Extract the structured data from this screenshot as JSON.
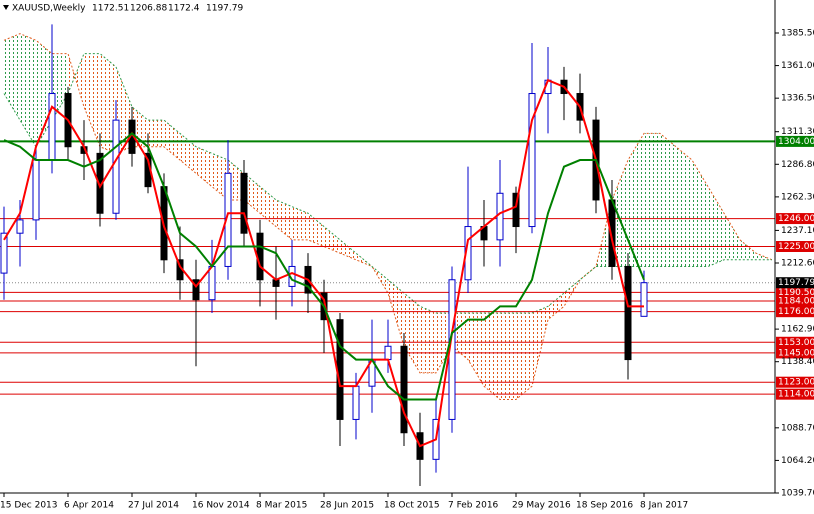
{
  "chart_data": {
    "type": "candlestick",
    "symbol": "XAUUSD,Weekly",
    "categories": [
      "15 Dec 2013",
      null,
      null,
      null,
      "6 Apr 2014",
      null,
      null,
      null,
      "27 Jul 2014",
      null,
      null,
      null,
      "16 Nov 2014",
      null,
      null,
      null,
      "8 Mar 2015",
      null,
      null,
      null,
      "28 Jun 2015",
      null,
      null,
      null,
      "18 Oct 2015",
      null,
      null,
      null,
      "7 Feb 2016",
      null,
      null,
      null,
      "29 May 2016",
      null,
      null,
      null,
      "18 Sep 2016",
      null,
      null,
      null,
      "8 Jan 2017",
      null,
      null,
      null,
      null,
      null,
      null,
      null,
      null
    ],
    "open": [
      1205,
      1235,
      1245,
      1290,
      1340,
      1300,
      1295,
      1250,
      1320,
      1295,
      1270,
      1215,
      1200,
      1185,
      1210,
      1280,
      1235,
      1200,
      1195,
      1210,
      1190,
      1170,
      1095,
      1120,
      1140,
      1150,
      1085,
      1065,
      1095,
      1200,
      1240,
      1230,
      1265,
      1240,
      1340,
      1350,
      1340,
      1320,
      1260,
      1210,
      1172.51,
      null,
      null,
      null,
      null,
      null,
      null,
      null,
      null
    ],
    "high": [
      1255,
      1260,
      1300,
      1392,
      1345,
      1320,
      1310,
      1335,
      1330,
      1310,
      1280,
      1240,
      1215,
      1230,
      1305,
      1290,
      1245,
      1225,
      1230,
      1220,
      1200,
      1175,
      1130,
      1170,
      1170,
      1160,
      1100,
      1110,
      1210,
      1285,
      1260,
      1290,
      1270,
      1378,
      1375,
      1360,
      1355,
      1330,
      1275,
      1220,
      1206.88,
      null,
      null,
      null,
      null,
      null,
      null,
      null,
      null
    ],
    "low": [
      1185,
      1210,
      1230,
      1280,
      1290,
      1275,
      1240,
      1245,
      1285,
      1265,
      1205,
      1185,
      1135,
      1175,
      1200,
      1225,
      1180,
      1170,
      1180,
      1175,
      1145,
      1075,
      1080,
      1100,
      1130,
      1075,
      1045,
      1055,
      1085,
      1190,
      1210,
      1210,
      1220,
      1235,
      1310,
      1320,
      1310,
      1250,
      1200,
      1125,
      1172.4,
      null,
      null,
      null,
      null,
      null,
      null,
      null,
      null
    ],
    "close": [
      1235,
      1245,
      1290,
      1340,
      1300,
      1295,
      1250,
      1320,
      1295,
      1270,
      1215,
      1200,
      1185,
      1210,
      1280,
      1235,
      1200,
      1195,
      1210,
      1190,
      1170,
      1095,
      1120,
      1140,
      1150,
      1085,
      1065,
      1095,
      1200,
      1240,
      1230,
      1265,
      1240,
      1340,
      1350,
      1340,
      1320,
      1260,
      1210,
      1140,
      1197.79,
      null,
      null,
      null,
      null,
      null,
      null,
      null,
      null
    ],
    "up_color": "#0000cc",
    "down_color": "#000000",
    "lines": [
      {
        "color": "#ff0000",
        "values": [
          1230,
          1250,
          1300,
          1330,
          1320,
          1300,
          1270,
          1290,
          1310,
          1290,
          1240,
          1210,
          1195,
          1210,
          1250,
          1250,
          1210,
          1200,
          1205,
          1200,
          1185,
          1120,
          1120,
          1140,
          1140,
          1100,
          1075,
          1080,
          1160,
          1230,
          1240,
          1250,
          1255,
          1320,
          1350,
          1345,
          1330,
          1290,
          1230,
          1180,
          1180,
          null,
          null,
          null,
          null,
          null,
          null,
          null,
          null
        ]
      },
      {
        "color": "#008000",
        "values": [
          1305,
          1300,
          1290,
          1290,
          1290,
          1285,
          1290,
          1300,
          1310,
          1300,
          1270,
          1235,
          1225,
          1210,
          1225,
          1225,
          1225,
          1220,
          1200,
          1195,
          1180,
          1150,
          1140,
          1140,
          1120,
          1110,
          1110,
          1110,
          1160,
          1170,
          1170,
          1180,
          1180,
          1200,
          1250,
          1285,
          1290,
          1290,
          1260,
          1230,
          1200,
          null,
          null,
          null,
          null,
          null,
          null,
          null,
          null
        ]
      }
    ],
    "cloud": {
      "span_a": [
        1380,
        1385,
        1380,
        1370,
        1370,
        1330,
        1300,
        1295,
        1300,
        1300,
        1300,
        1290,
        1280,
        1270,
        1260,
        1260,
        1250,
        1240,
        1230,
        1230,
        1225,
        1220,
        1215,
        1210,
        1190,
        1150,
        1130,
        1130,
        1150,
        1140,
        1120,
        1110,
        1110,
        1120,
        1170,
        1180,
        1200,
        1210,
        1260,
        1290,
        1310,
        1310,
        1300,
        1290,
        1270,
        1250,
        1230,
        1220,
        1215
      ],
      "span_b": [
        1340,
        1320,
        1300,
        1320,
        1340,
        1370,
        1370,
        1360,
        1330,
        1320,
        1320,
        1310,
        1300,
        1295,
        1290,
        1280,
        1270,
        1260,
        1255,
        1250,
        1240,
        1230,
        1220,
        1210,
        1200,
        1190,
        1180,
        1175,
        1175,
        1175,
        1175,
        1175,
        1175,
        1175,
        1180,
        1190,
        1200,
        1210,
        1210,
        1210,
        1210,
        1210,
        1210,
        1210,
        1210,
        1215,
        1215,
        1215,
        1215
      ],
      "bear_color": "#e05a1a",
      "bull_color": "#2e9a4a"
    },
    "levels": [
      {
        "value": 1304,
        "label": "1304.00",
        "color": "#008000"
      },
      {
        "value": 1246,
        "label": "1246.00",
        "color": "#dd0000"
      },
      {
        "value": 1225,
        "label": "1225.00",
        "color": "#dd0000"
      },
      {
        "value": 1190.5,
        "label": "1190.50",
        "color": "#dd0000"
      },
      {
        "value": 1184,
        "label": "1184.00",
        "color": "#dd0000"
      },
      {
        "value": 1176,
        "label": "1176.00",
        "color": "#dd0000"
      },
      {
        "value": 1153,
        "label": "1153.00",
        "color": "#dd0000"
      },
      {
        "value": 1145,
        "label": "1145.00",
        "color": "#dd0000"
      },
      {
        "value": 1123,
        "label": "1123.00",
        "color": "#dd0000"
      },
      {
        "value": 1114,
        "label": "1114.00",
        "color": "#dd0000"
      }
    ],
    "ylim": [
      1039.7,
      1410.3
    ],
    "yticks": [
      {
        "value": 1385.5,
        "label": "1385.50"
      },
      {
        "value": 1361,
        "label": "1361.00"
      },
      {
        "value": 1336.5,
        "label": "1336.50"
      },
      {
        "value": 1311.3,
        "label": "1311.30"
      },
      {
        "value": 1286.8,
        "label": "1286.80"
      },
      {
        "value": 1262.3,
        "label": "1262.30"
      },
      {
        "value": 1237.1,
        "label": "1237.10"
      },
      {
        "value": 1212.6,
        "label": "1212.60"
      },
      {
        "value": 1162.9,
        "label": "1162.90"
      },
      {
        "value": 1138.4,
        "label": "1138.40"
      },
      {
        "value": 1088.7,
        "label": "1088.70"
      },
      {
        "value": 1064.2,
        "label": "1064.20"
      },
      {
        "value": 1039.7,
        "label": "1039.70"
      }
    ]
  }
}
